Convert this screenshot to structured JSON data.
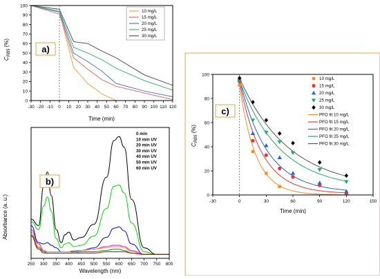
{
  "chart_data": [
    {
      "panel": "a)",
      "type": "line",
      "x": [
        -30,
        0,
        15,
        30,
        45,
        60,
        90,
        120
      ],
      "series": [
        {
          "name": "10 mg/L",
          "color": "#f5a442",
          "values": [
            100,
            93,
            35,
            18,
            7,
            0,
            null,
            null
          ]
        },
        {
          "name": "15 mg/L",
          "color": "#f06a6a",
          "values": [
            100,
            91,
            45,
            33,
            22,
            15,
            8,
            1
          ]
        },
        {
          "name": "20 mg/L",
          "color": "#4a78d6",
          "values": [
            100,
            93,
            50,
            41,
            31,
            18,
            10,
            4
          ]
        },
        {
          "name": "25 mg/L",
          "color": "#3cb878",
          "values": [
            100,
            94,
            56,
            50,
            43,
            34,
            21,
            11
          ]
        },
        {
          "name": "30 mg/L",
          "color": "#555555",
          "values": [
            100,
            96,
            62,
            60,
            52,
            45,
            27,
            16
          ]
        }
      ],
      "xlim": [
        -30,
        120
      ],
      "ylim": [
        0,
        100
      ],
      "xticks": [
        "-30",
        "-20",
        "-10",
        "0",
        "10",
        "20",
        "30",
        "40",
        "50",
        "60",
        "70",
        "80",
        "90",
        "100",
        "110",
        "120"
      ],
      "yticks": [
        "0",
        "10",
        "20",
        "30",
        "40",
        "50",
        "60",
        "70",
        "80",
        "90",
        "100"
      ],
      "xlabel": "Time (min)",
      "ylabel_main": "C",
      "ylabel_sub": "RB5",
      "ylabel_unit": " (%)"
    },
    {
      "panel": "b)",
      "type": "line",
      "x": [
        250,
        280,
        300,
        315,
        330,
        350,
        370,
        385,
        400,
        420,
        450,
        500,
        550,
        580,
        600,
        620,
        650,
        700,
        750,
        800
      ],
      "series": [
        {
          "name": "0 min",
          "color": "#000000",
          "values": [
            0.3,
            0.25,
            0.55,
            0.66,
            0.48,
            0.22,
            0.12,
            0.18,
            0.2,
            0.14,
            0.16,
            0.26,
            0.62,
            0.9,
            0.93,
            0.85,
            0.45,
            0.08,
            0.03,
            0.03
          ]
        },
        {
          "name": "10 min UV",
          "color": "#00dd00",
          "values": [
            0.28,
            0.22,
            0.4,
            0.47,
            0.36,
            0.15,
            0.08,
            0.11,
            0.12,
            0.09,
            0.1,
            0.17,
            0.38,
            0.55,
            0.56,
            0.5,
            0.27,
            0.05,
            0.03,
            0.03
          ]
        },
        {
          "name": "20 min UV",
          "color": "#0000cc",
          "values": [
            0.25,
            0.12,
            0.11,
            0.12,
            0.1,
            0.08,
            0.05,
            0.05,
            0.05,
            0.05,
            0.06,
            0.08,
            0.16,
            0.23,
            0.24,
            0.21,
            0.11,
            0.03,
            0.03,
            0.03
          ]
        },
        {
          "name": "30 min UV",
          "color": "#ff00ff",
          "values": [
            0.22,
            0.11,
            0.06,
            0.05,
            0.05,
            0.05,
            0.05,
            0.05,
            0.05,
            0.06,
            0.06,
            0.07,
            0.09,
            0.1,
            0.1,
            0.09,
            0.06,
            0.03,
            0.03,
            0.03
          ]
        },
        {
          "name": "40 min UV",
          "color": "#c8b400",
          "values": [
            0.2,
            0.09,
            0.05,
            0.05,
            0.05,
            0.05,
            0.05,
            0.05,
            0.05,
            0.06,
            0.06,
            0.07,
            0.08,
            0.09,
            0.09,
            0.08,
            0.05,
            0.03,
            0.03,
            0.03
          ]
        },
        {
          "name": "50 min UV",
          "color": "#008800",
          "values": [
            0.18,
            0.08,
            0.05,
            0.04,
            0.04,
            0.04,
            0.04,
            0.04,
            0.04,
            0.04,
            0.05,
            0.05,
            0.06,
            0.07,
            0.07,
            0.06,
            0.04,
            0.03,
            0.03,
            0.03
          ]
        },
        {
          "name": "60 min UV",
          "color": "#dd0000",
          "values": [
            0.17,
            0.07,
            0.04,
            0.04,
            0.04,
            0.04,
            0.04,
            0.04,
            0.04,
            0.04,
            0.04,
            0.04,
            0.05,
            0.05,
            0.05,
            0.05,
            0.04,
            0.03,
            0.03,
            0.03
          ]
        }
      ],
      "xlim": [
        250,
        800
      ],
      "ylim": [
        0,
        1
      ],
      "xticks": [
        "250",
        "300",
        "350",
        "400",
        "450",
        "500",
        "550",
        "600",
        "650",
        "700",
        "750",
        "800"
      ],
      "xlabel": "Wavelength (nm)",
      "ylabel": "Absorbance (a. u.)"
    },
    {
      "panel": "c)",
      "type": "scatter",
      "x": [
        0,
        15,
        30,
        45,
        60,
        90,
        120
      ],
      "series": [
        {
          "name": "10 mg/L",
          "color": "#f28c28",
          "marker": "square",
          "values": [
            91,
            36,
            18,
            7,
            null,
            null,
            null
          ]
        },
        {
          "name": "15 mg/L",
          "color": "#ee3333",
          "marker": "circle",
          "values": [
            94,
            45,
            33,
            22,
            15,
            8,
            1
          ]
        },
        {
          "name": "20 mg/L",
          "color": "#2266dd",
          "marker": "triangle-up",
          "values": [
            96,
            51,
            41,
            31,
            18,
            10,
            3
          ]
        },
        {
          "name": "25 mg/L",
          "color": "#22aa66",
          "marker": "triangle-down",
          "values": [
            95,
            62,
            52,
            44,
            35,
            21,
            11
          ]
        },
        {
          "name": "30 mg/L",
          "color": "#000000",
          "marker": "diamond",
          "values": [
            97,
            77,
            62,
            51,
            43,
            27,
            16
          ]
        }
      ],
      "fits": [
        {
          "name": "PFO fit 10 mg/L",
          "color": "#f28c28",
          "c0": 91,
          "k": 0.055,
          "cinf": 0
        },
        {
          "name": "PFO fit 15 mg/L",
          "color": "#ee3333",
          "c0": 94,
          "k": 0.04,
          "cinf": 1
        },
        {
          "name": "PFO fit 20 mg/L",
          "color": "#2266dd",
          "c0": 96,
          "k": 0.032,
          "cinf": 2
        },
        {
          "name": "PFO fit 25 mg/L",
          "color": "#22aa66",
          "c0": 95,
          "k": 0.022,
          "cinf": 5
        },
        {
          "name": "PFO fit 30 mg/L",
          "color": "#555555",
          "c0": 97,
          "k": 0.018,
          "cinf": 5
        }
      ],
      "xlim": [
        -30,
        150
      ],
      "ylim": [
        0,
        100
      ],
      "xticks": [
        "-30",
        "0",
        "30",
        "60",
        "90",
        "120",
        "150"
      ],
      "yticks": [
        "0",
        "20",
        "40",
        "60",
        "80",
        "100"
      ],
      "xlabel": "Time (min)",
      "ylabel_main": "C",
      "ylabel_sub": "RB5",
      "ylabel_unit": " (%)"
    }
  ]
}
